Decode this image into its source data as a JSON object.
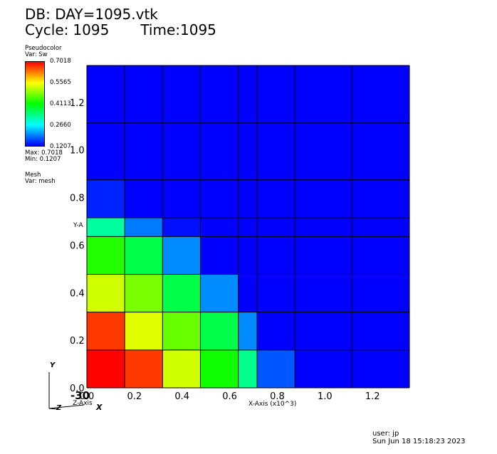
{
  "header": {
    "db_line": "DB: DAY=1095.vtk",
    "cycle_label": "Cycle:",
    "cycle_value": "1095",
    "time_label": "Time:1095"
  },
  "legend": {
    "plot_type": "Pseudocolor",
    "var_label": "Var: Sw",
    "ticks": [
      "0.7018",
      "0.5565",
      "0.4113",
      "0.2660",
      "0.1207"
    ],
    "max_label": "Max:",
    "max_value": "0.7018",
    "min_label": "Min:",
    "min_value": "0.1207",
    "mesh_label": "Mesh",
    "mesh_var": "Var: mesh"
  },
  "footer": {
    "user": "user: jp",
    "date": "Sun Jun 18 15:18:23 2023"
  },
  "axes_triad": {
    "y": "Y",
    "z": "Z",
    "x": "X"
  },
  "chart_data": {
    "type": "heatmap",
    "xlabel": "X-Axis (x10^3)",
    "ylabel": "Y-A",
    "zlabel": "Z-Axis",
    "z_tick": "-30",
    "x_ticks": [
      "0.0",
      "0.2",
      "0.4",
      "0.6",
      "0.8",
      "1.0",
      "1.2"
    ],
    "x_tick_values": [
      0.0,
      0.2,
      0.4,
      0.6,
      0.8,
      1.0,
      1.2
    ],
    "y_ticks": [
      "0.0",
      "0.2",
      "0.4",
      "0.6",
      "0.8",
      "1.0",
      "1.2"
    ],
    "y_tick_values": [
      0.0,
      0.2,
      0.4,
      0.6,
      0.8,
      1.0,
      1.2
    ],
    "xlim": [
      0,
      1.355
    ],
    "ylim": [
      0,
      1.355
    ],
    "x_edges": [
      0,
      0.159,
      0.318,
      0.477,
      0.636,
      0.715,
      0.874,
      1.113,
      1.355
    ],
    "y_edges": [
      0,
      0.159,
      0.318,
      0.477,
      0.636,
      0.715,
      0.874,
      1.113,
      1.355
    ],
    "value_range": [
      0.1207,
      0.7018
    ],
    "colormap": [
      "#0000ff",
      "#00ffff",
      "#00ff00",
      "#ffff00",
      "#ff0000"
    ],
    "grid": true,
    "values": [
      [
        0.7,
        0.67,
        0.53,
        0.42,
        0.33,
        0.17,
        0.1207,
        0.1207
      ],
      [
        0.67,
        0.54,
        0.47,
        0.37,
        0.2,
        0.1207,
        0.1207,
        0.1207
      ],
      [
        0.53,
        0.48,
        0.37,
        0.2,
        0.1207,
        0.1207,
        0.1207,
        0.1207
      ],
      [
        0.43,
        0.37,
        0.2,
        0.1207,
        0.1207,
        0.1207,
        0.1207,
        0.1207
      ],
      [
        0.32,
        0.19,
        0.13,
        0.1207,
        0.1207,
        0.1207,
        0.1207,
        0.1207
      ],
      [
        0.14,
        0.1207,
        0.1207,
        0.1207,
        0.1207,
        0.1207,
        0.1207,
        0.1207
      ],
      [
        0.1207,
        0.1207,
        0.1207,
        0.1207,
        0.1207,
        0.1207,
        0.1207,
        0.1207
      ],
      [
        0.1207,
        0.1207,
        0.1207,
        0.1207,
        0.1207,
        0.1207,
        0.1207,
        0.1207
      ]
    ]
  }
}
